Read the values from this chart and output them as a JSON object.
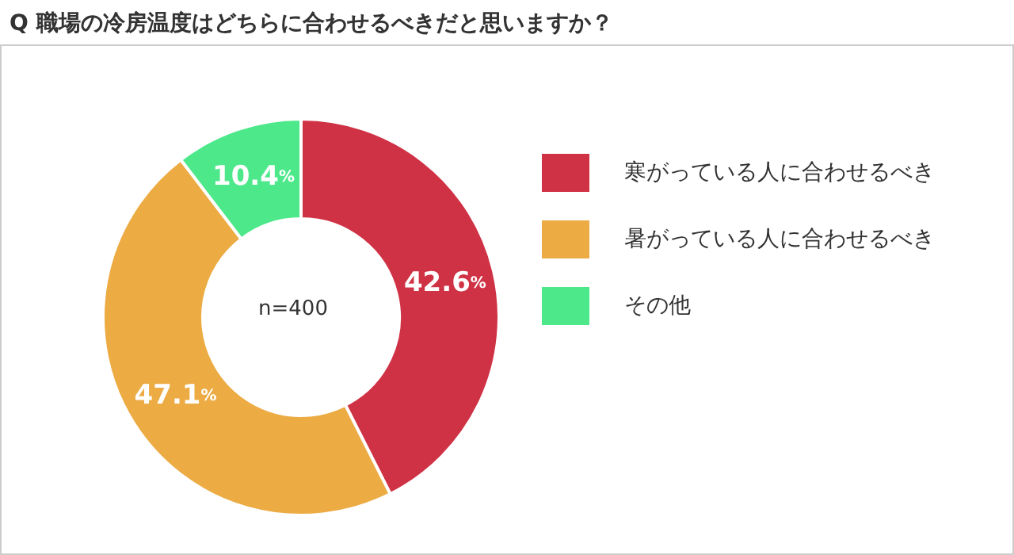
{
  "chart_data": {
    "type": "donut",
    "title": "Q 職場の冷房温度はどちらに合わせるべきだと思いますか？",
    "categories": [
      "寒がっている人に合わせるべき",
      "暑がっている人に合わせるべき",
      "その他"
    ],
    "values": [
      42.6,
      47.1,
      10.4
    ],
    "colors": [
      "#d03245",
      "#ecab43",
      "#4de88a"
    ],
    "value_labels": [
      "42.6%",
      "47.1%",
      "10.4%"
    ],
    "annotations": [
      "n=400"
    ],
    "legend": "right"
  }
}
